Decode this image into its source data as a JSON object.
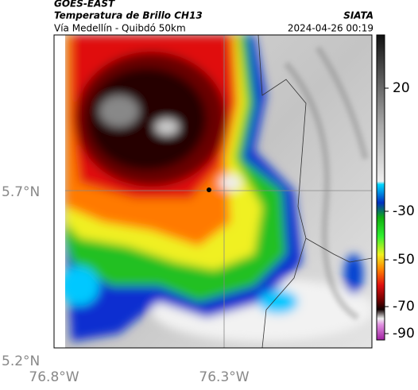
{
  "header": {
    "source": "GOES-EAST",
    "title": "Temperatura de Brillo CH13",
    "subtitle": "Vía Medellín - Quibdó 50km",
    "agency": "SIATA",
    "timestamp": "2024-04-26 00:19"
  },
  "axes": {
    "latitudes": [
      "5.7°N",
      "5.2°N"
    ],
    "longitudes": [
      "76.8°W",
      "76.3°W"
    ]
  },
  "colorbar": {
    "ticks": [
      20,
      -30,
      -50,
      -70,
      -90
    ]
  }
}
